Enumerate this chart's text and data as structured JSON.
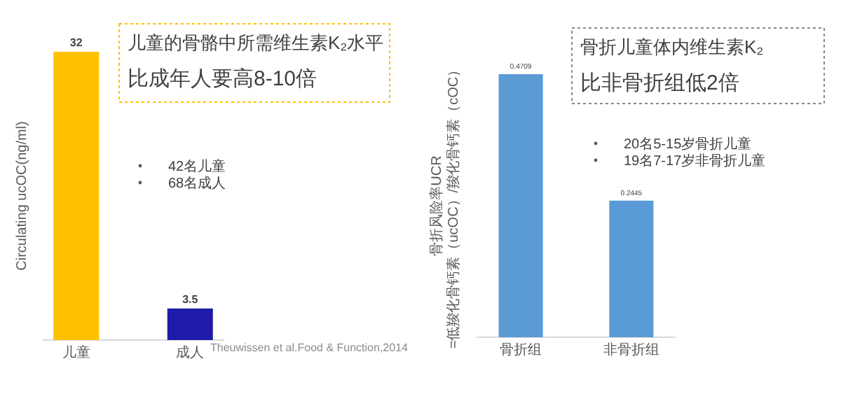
{
  "chart_data": [
    {
      "type": "bar",
      "title": "儿童的骨骼中所需维生素K₂水平",
      "subtitle": "比成年人要高8-10倍",
      "ylabel": "Circulating ucOC(ng/ml)",
      "categories": [
        "儿童",
        "成人"
      ],
      "values": [
        32,
        3.5
      ],
      "colors": [
        "#ffc000",
        "#1f1aa8"
      ],
      "data_labels": true,
      "annotations": [
        "42名儿童",
        "68名成人",
        "Theuwissen et al.Food & Function,2014"
      ]
    },
    {
      "type": "bar",
      "title": "骨折儿童体内维生素K₂",
      "subtitle": "比非骨折组低2倍",
      "ylabel": "骨折风险率UCR\n=低羧化骨钙素（ucOC）/羧化骨钙素（cOC）",
      "categories": [
        "骨折组",
        "非骨折组"
      ],
      "values": [
        0.4709,
        0.2445
      ],
      "colors": [
        "#5b9bd5",
        "#5b9bd5"
      ],
      "data_labels": true,
      "annotations": [
        "20名5-15岁骨折儿童",
        "19名7-17岁非骨折儿童"
      ]
    }
  ]
}
